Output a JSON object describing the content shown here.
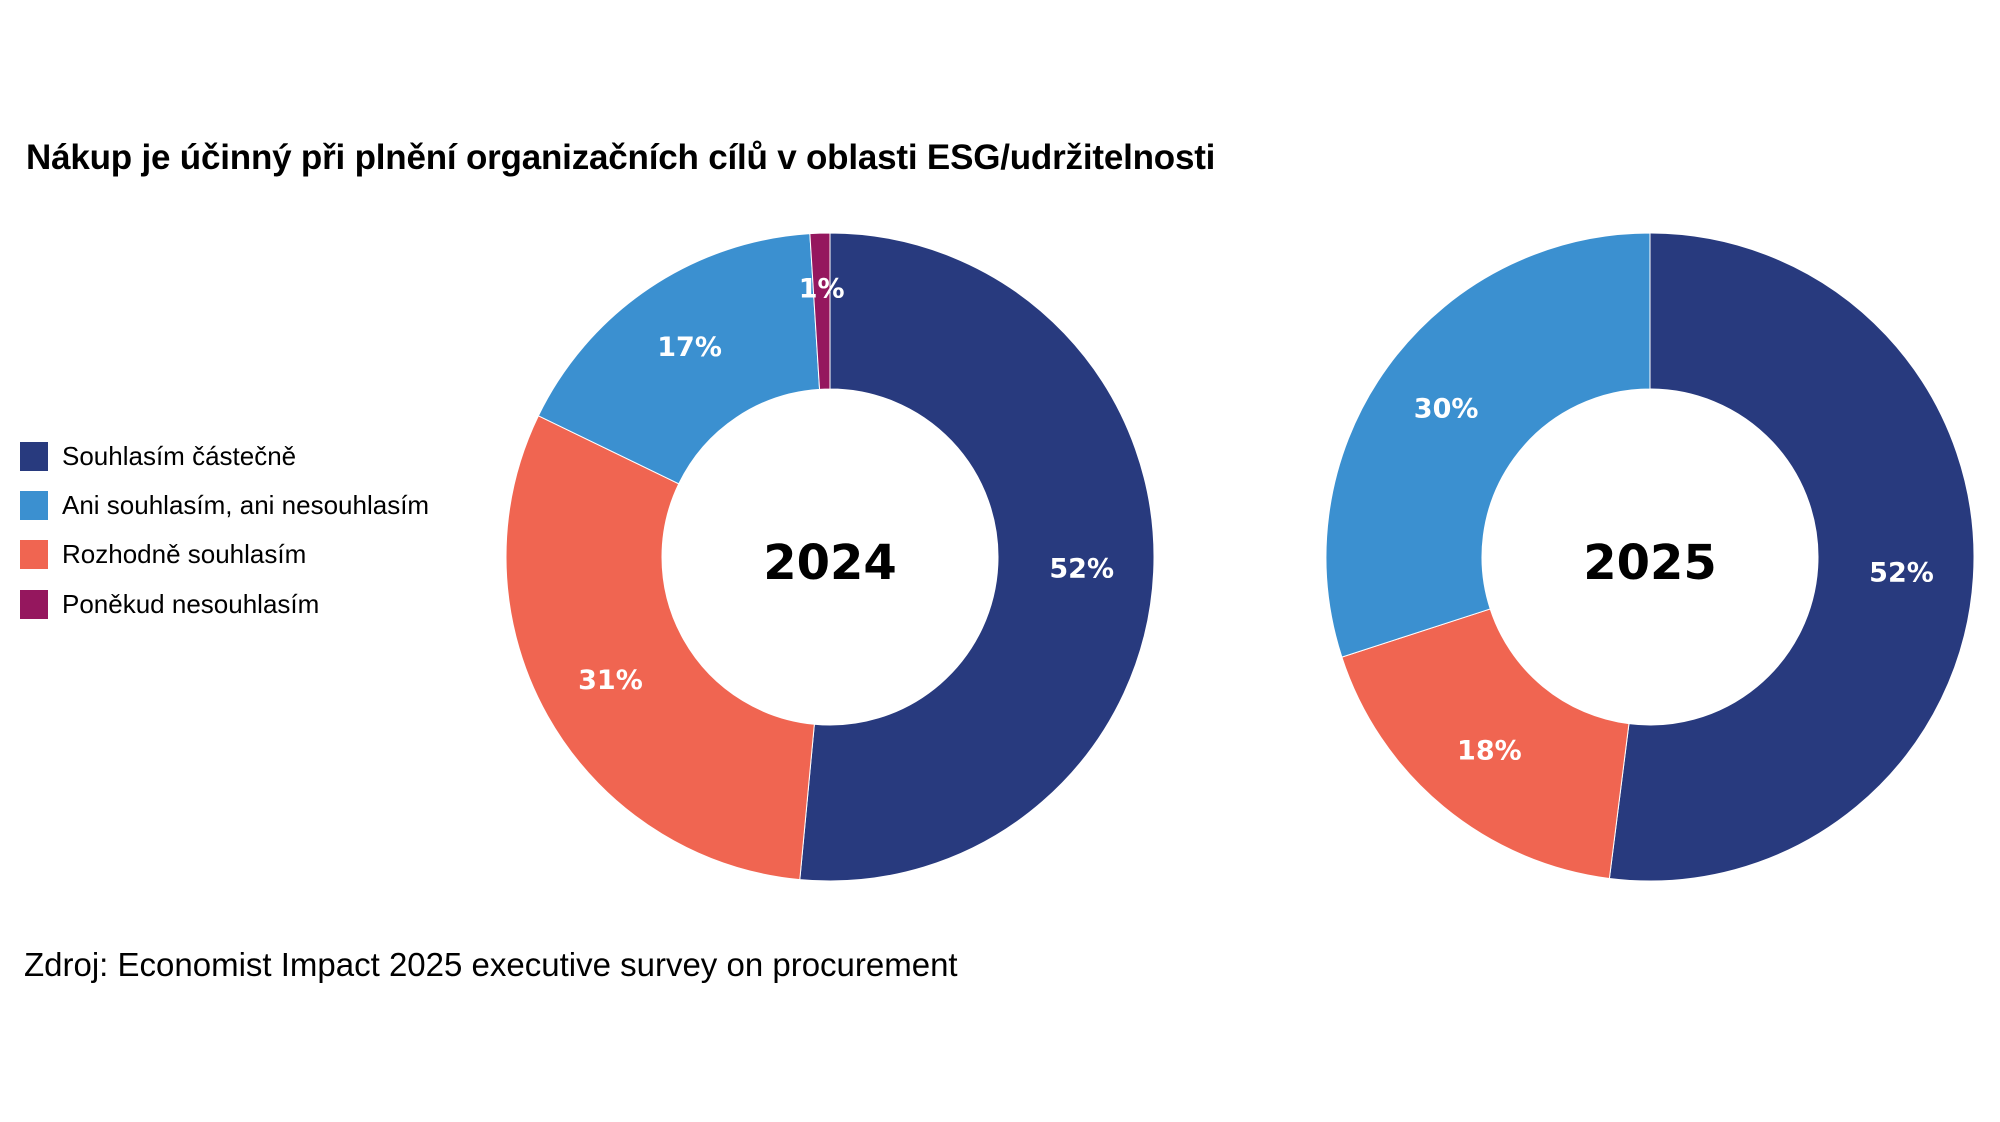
{
  "title": "Nákup je účinný při plnění organizačních cílů v oblasti ESG/udržitelnosti",
  "source": "Zdroj: Economist Impact 2025 executive survey on procurement",
  "legend": [
    {
      "label": "Souhlasím částečně",
      "color": "#283a7e"
    },
    {
      "label": "Ani souhlasím, ani nesouhlasím",
      "color": "#3b90d0"
    },
    {
      "label": "Rozhodně souhlasím",
      "color": "#f06551"
    },
    {
      "label": "Poněkud nesouhlasím",
      "color": "#95175e"
    }
  ],
  "chart_data": [
    {
      "type": "pie",
      "variant": "donut",
      "title": "Nákup je účinný při plnění organizačních cílů v oblasti ESG/udržitelnosti",
      "center_label": "2024",
      "start": "top",
      "direction": "clockwise",
      "slices": [
        {
          "name": "Souhlasím částečně",
          "value": 52,
          "label": "52%",
          "color": "#283a7e"
        },
        {
          "name": "Rozhodně souhlasím",
          "value": 31,
          "label": "31%",
          "color": "#f06551"
        },
        {
          "name": "Ani souhlasím, ani nesouhlasím",
          "value": 17,
          "label": "17%",
          "color": "#3b90d0"
        },
        {
          "name": "Poněkud nesouhlasím",
          "value": 1,
          "label": "1%",
          "color": "#95175e"
        }
      ]
    },
    {
      "type": "pie",
      "variant": "donut",
      "title": "Nákup je účinný při plnění organizačních cílů v oblasti ESG/udržitelnosti",
      "center_label": "2025",
      "start": "top",
      "direction": "clockwise",
      "slices": [
        {
          "name": "Souhlasím částečně",
          "value": 52,
          "label": "52%",
          "color": "#283a7e"
        },
        {
          "name": "Rozhodně souhlasím",
          "value": 18,
          "label": "18%",
          "color": "#f06551"
        },
        {
          "name": "Ani souhlasím, ani nesouhlasím",
          "value": 30,
          "label": "30%",
          "color": "#3b90d0"
        }
      ]
    }
  ]
}
